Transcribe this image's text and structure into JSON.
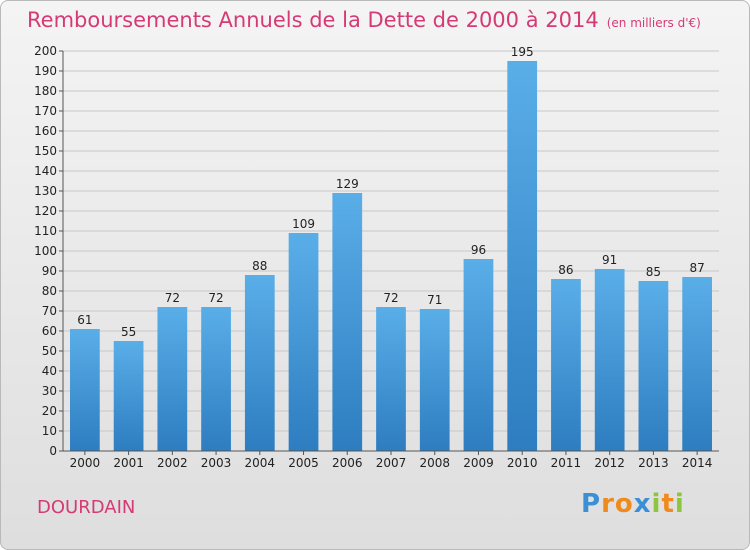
{
  "chart_data": {
    "type": "bar",
    "title": "Remboursements Annuels de la Dette de 2000 à 2014",
    "subtitle": "(en milliers d'€)",
    "categories": [
      "2000",
      "2001",
      "2002",
      "2003",
      "2004",
      "2005",
      "2006",
      "2007",
      "2008",
      "2009",
      "2010",
      "2011",
      "2012",
      "2013",
      "2014"
    ],
    "values": [
      61,
      55,
      72,
      72,
      88,
      109,
      129,
      72,
      71,
      96,
      195,
      86,
      91,
      85,
      87
    ],
    "xlabel": "",
    "ylabel": "",
    "ylim": [
      0,
      200
    ],
    "ytick_step": 10,
    "grid": true,
    "bar_color": "#3a8fd6"
  },
  "commune": "DOURDAIN",
  "logo": {
    "letters": [
      "P",
      "r",
      "o",
      "x",
      "i",
      "t",
      "i"
    ],
    "colors": [
      "#3a8fd6",
      "#f08a1c",
      "#f08a1c",
      "#3a8fd6",
      "#8cc63f",
      "#f08a1c",
      "#8cc63f"
    ]
  }
}
